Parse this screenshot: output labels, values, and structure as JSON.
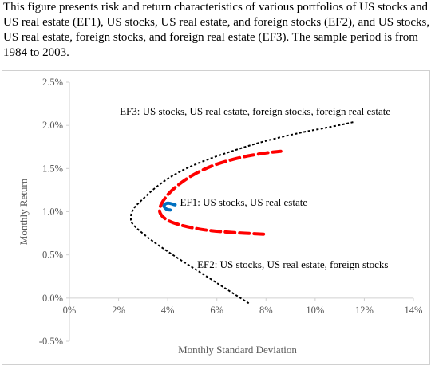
{
  "caption": "This figure presents risk and return characteristics of various portfolios of US stocks and US real estate (EF1), US stocks, US real estate, and foreign stocks (EF2), and US stocks, US real estate, foreign stocks, and foreign real estate (EF3). The sample period is from 1984 to 2003.",
  "chart_data": {
    "type": "line",
    "xlabel": "Monthly Standard Deviation",
    "ylabel": "Monthly Return",
    "xlim": [
      0,
      14
    ],
    "ylim": [
      -0.5,
      2.5
    ],
    "x_ticks": [
      "0%",
      "2%",
      "4%",
      "6%",
      "8%",
      "10%",
      "12%",
      "14%"
    ],
    "y_ticks": [
      "2.5%",
      "2.0%",
      "1.5%",
      "1.0%",
      "0.5%",
      "0.0%",
      "-0.5%"
    ],
    "grid": false,
    "series": [
      {
        "name": "EF3: US stocks, US real estate, foreign stocks, foreign real estate",
        "color": "#000000",
        "style": "dotted",
        "points": [
          [
            7.3,
            -0.06
          ],
          [
            6.3,
            0.12
          ],
          [
            5.2,
            0.32
          ],
          [
            4.1,
            0.52
          ],
          [
            3.2,
            0.7
          ],
          [
            2.6,
            0.85
          ],
          [
            2.5,
            0.93
          ],
          [
            2.6,
            1.03
          ],
          [
            3.0,
            1.15
          ],
          [
            3.6,
            1.3
          ],
          [
            4.4,
            1.45
          ],
          [
            5.4,
            1.58
          ],
          [
            6.6,
            1.7
          ],
          [
            8.0,
            1.82
          ],
          [
            9.5,
            1.92
          ],
          [
            10.6,
            1.98
          ],
          [
            11.6,
            2.04
          ]
        ]
      },
      {
        "name": "EF2: US stocks, US real estate, foreign stocks",
        "color": "#ff0000",
        "style": "dashed",
        "points": [
          [
            7.9,
            0.74
          ],
          [
            6.6,
            0.76
          ],
          [
            5.5,
            0.79
          ],
          [
            4.6,
            0.84
          ],
          [
            4.0,
            0.9
          ],
          [
            3.7,
            0.98
          ],
          [
            3.7,
            1.06
          ],
          [
            3.9,
            1.16
          ],
          [
            4.3,
            1.28
          ],
          [
            5.0,
            1.42
          ],
          [
            5.9,
            1.54
          ],
          [
            7.0,
            1.63
          ],
          [
            8.0,
            1.68
          ],
          [
            8.6,
            1.7
          ]
        ]
      },
      {
        "name": "EF1: US stocks, US real estate",
        "color": "#0070c0",
        "style": "solid",
        "points": [
          [
            4.3,
            1.08
          ],
          [
            4.0,
            1.1
          ],
          [
            3.85,
            1.07
          ],
          [
            3.95,
            1.03
          ],
          [
            4.1,
            1.02
          ]
        ]
      }
    ],
    "annotations": [
      {
        "text": "EF3: US stocks, US real estate, foreign stocks, foreign real estate",
        "x": 2.05,
        "y": 2.12
      },
      {
        "text": "EF1: US stocks, US real estate",
        "x": 4.5,
        "y": 1.07
      },
      {
        "text": "EF2: US stocks, US real estate, foreign stocks",
        "x": 5.2,
        "y": 0.35
      }
    ]
  }
}
